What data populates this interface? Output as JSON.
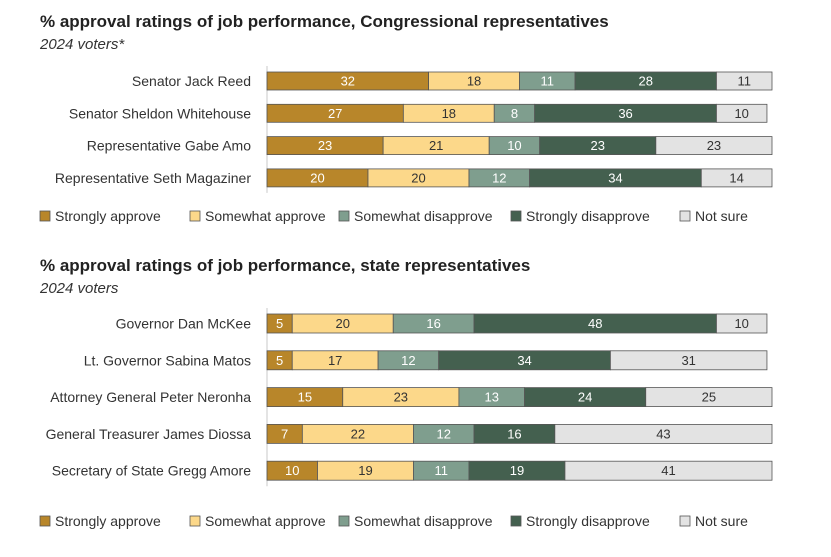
{
  "colors": {
    "strongly_approve": "#B8862A",
    "somewhat_approve": "#FCD88A",
    "somewhat_disapprove": "#7F9E8E",
    "strongly_disapprove": "#44604F",
    "not_sure": "#E3E3E3"
  },
  "chart_data": [
    {
      "type": "bar",
      "orientation": "horizontal",
      "stacked": true,
      "title": "% approval ratings of job performance, Congressional representatives",
      "subtitle": "2024 voters*",
      "categories": [
        "Senator Jack Reed",
        "Senator Sheldon Whitehouse",
        "Representative Gabe Amo",
        "Representative Seth Magaziner"
      ],
      "series": [
        {
          "name": "Strongly approve",
          "values": [
            32,
            27,
            23,
            20
          ]
        },
        {
          "name": "Somewhat approve",
          "values": [
            18,
            18,
            21,
            20
          ]
        },
        {
          "name": "Somewhat disapprove",
          "values": [
            11,
            8,
            10,
            12
          ]
        },
        {
          "name": "Strongly disapprove",
          "values": [
            28,
            36,
            23,
            34
          ]
        },
        {
          "name": "Not sure",
          "values": [
            11,
            10,
            23,
            14
          ]
        }
      ],
      "legend": "bottom",
      "xlim": [
        0,
        100
      ]
    },
    {
      "type": "bar",
      "orientation": "horizontal",
      "stacked": true,
      "title": "% approval ratings of job performance, state representatives",
      "subtitle": "2024 voters",
      "categories": [
        "Governor Dan McKee",
        "Lt. Governor Sabina Matos",
        "Attorney General Peter Neronha",
        "General Treasurer James Diossa",
        "Secretary of State Gregg Amore"
      ],
      "series": [
        {
          "name": "Strongly approve",
          "values": [
            5,
            5,
            15,
            7,
            10
          ]
        },
        {
          "name": "Somewhat approve",
          "values": [
            20,
            17,
            23,
            22,
            19
          ]
        },
        {
          "name": "Somewhat disapprove",
          "values": [
            16,
            12,
            13,
            12,
            11
          ]
        },
        {
          "name": "Strongly disapprove",
          "values": [
            48,
            34,
            24,
            16,
            19
          ]
        },
        {
          "name": "Not sure",
          "values": [
            10,
            31,
            25,
            43,
            41
          ]
        }
      ],
      "legend": "bottom",
      "xlim": [
        0,
        100
      ]
    }
  ]
}
